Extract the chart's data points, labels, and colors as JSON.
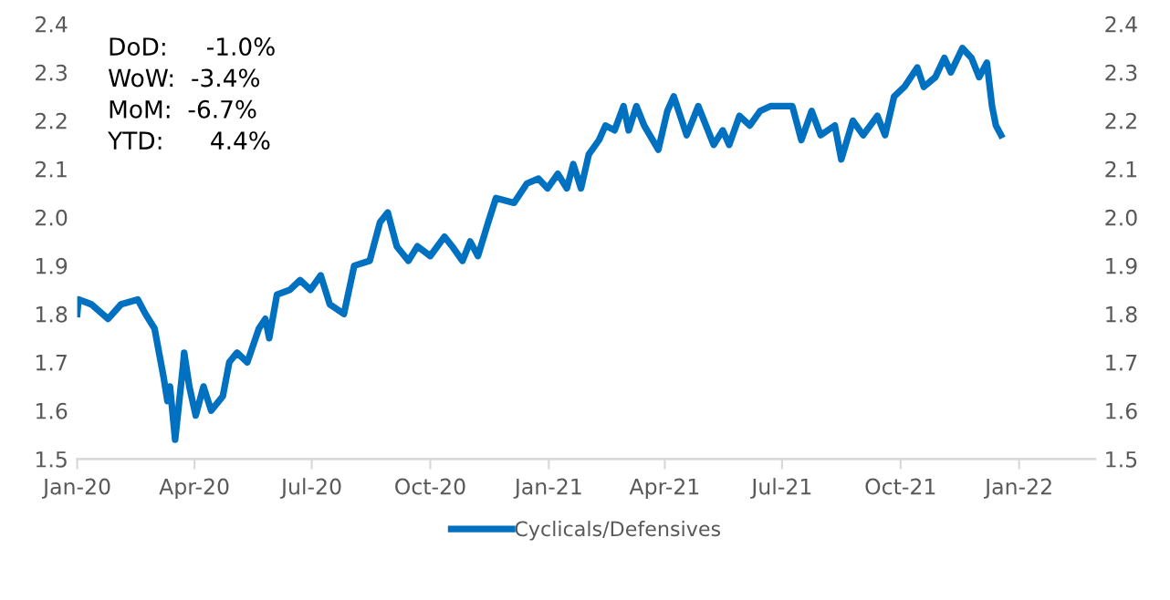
{
  "chart_data": {
    "type": "line",
    "x": [
      "2020-01-01",
      "2020-01-02",
      "2020-01-12",
      "2020-01-25",
      "2020-02-04",
      "2020-02-17",
      "2020-02-23",
      "2020-03-01",
      "2020-03-08",
      "2020-03-11",
      "2020-03-13",
      "2020-03-17",
      "2020-03-23",
      "2020-03-24",
      "2020-03-28",
      "2020-04-02",
      "2020-04-08",
      "2020-04-14",
      "2020-04-23",
      "2020-04-28",
      "2020-05-04",
      "2020-05-12",
      "2020-05-21",
      "2020-05-26",
      "2020-05-29",
      "2020-06-04",
      "2020-06-14",
      "2020-06-22",
      "2020-06-30",
      "2020-07-08",
      "2020-07-15",
      "2020-07-26",
      "2020-08-03",
      "2020-08-15",
      "2020-08-23",
      "2020-08-29",
      "2020-09-05",
      "2020-09-14",
      "2020-09-21",
      "2020-10-01",
      "2020-10-12",
      "2020-10-18",
      "2020-10-26",
      "2020-11-01",
      "2020-11-07",
      "2020-11-15",
      "2020-11-21",
      "2020-12-05",
      "2020-12-15",
      "2020-12-24",
      "2020-12-31",
      "2021-01-08",
      "2021-01-15",
      "2021-01-20",
      "2021-01-26",
      "2021-02-01",
      "2021-02-09",
      "2021-02-14",
      "2021-02-21",
      "2021-02-28",
      "2021-03-04",
      "2021-03-10",
      "2021-03-16",
      "2021-03-27",
      "2021-04-03",
      "2021-04-08",
      "2021-04-18",
      "2021-04-27",
      "2021-05-09",
      "2021-05-16",
      "2021-05-21",
      "2021-05-29",
      "2021-06-06",
      "2021-06-14",
      "2021-06-22",
      "2021-07-02",
      "2021-07-09",
      "2021-07-16",
      "2021-07-24",
      "2021-07-31",
      "2021-08-11",
      "2021-08-16",
      "2021-08-25",
      "2021-09-02",
      "2021-09-13",
      "2021-09-19",
      "2021-09-26",
      "2021-10-04",
      "2021-10-14",
      "2021-10-19",
      "2021-10-28",
      "2021-11-04",
      "2021-11-09",
      "2021-11-18",
      "2021-11-25",
      "2021-12-01",
      "2021-12-07",
      "2021-12-11",
      "2021-12-14",
      "2021-12-18"
    ],
    "series": [
      {
        "name": "Cyclicals/Defensives",
        "color": "#0070c0",
        "values": [
          1.8,
          1.83,
          1.82,
          1.79,
          1.82,
          1.83,
          1.8,
          1.77,
          1.67,
          1.62,
          1.65,
          1.54,
          1.69,
          1.72,
          1.65,
          1.59,
          1.65,
          1.6,
          1.63,
          1.7,
          1.72,
          1.7,
          1.77,
          1.79,
          1.75,
          1.84,
          1.85,
          1.87,
          1.85,
          1.88,
          1.82,
          1.8,
          1.9,
          1.91,
          1.99,
          2.01,
          1.94,
          1.91,
          1.94,
          1.92,
          1.96,
          1.94,
          1.91,
          1.95,
          1.92,
          1.99,
          2.04,
          2.03,
          2.07,
          2.08,
          2.06,
          2.09,
          2.06,
          2.11,
          2.06,
          2.13,
          2.16,
          2.19,
          2.18,
          2.23,
          2.18,
          2.23,
          2.19,
          2.14,
          2.22,
          2.25,
          2.17,
          2.23,
          2.15,
          2.18,
          2.15,
          2.21,
          2.19,
          2.22,
          2.23,
          2.23,
          2.23,
          2.16,
          2.22,
          2.17,
          2.19,
          2.12,
          2.2,
          2.17,
          2.21,
          2.17,
          2.25,
          2.27,
          2.31,
          2.27,
          2.29,
          2.33,
          2.3,
          2.35,
          2.33,
          2.29,
          2.32,
          2.23,
          2.19,
          2.17
        ]
      }
    ],
    "xlim": [
      "2020-01-01",
      "2022-03-01"
    ],
    "xticks": [
      {
        "value": "2020-01-01",
        "label": "Jan-20"
      },
      {
        "value": "2020-04-01",
        "label": "Apr-20"
      },
      {
        "value": "2020-07-01",
        "label": "Jul-20"
      },
      {
        "value": "2020-10-01",
        "label": "Oct-20"
      },
      {
        "value": "2021-01-01",
        "label": "Jan-21"
      },
      {
        "value": "2021-04-01",
        "label": "Apr-21"
      },
      {
        "value": "2021-07-01",
        "label": "Jul-21"
      },
      {
        "value": "2021-10-01",
        "label": "Oct-21"
      },
      {
        "value": "2022-01-01",
        "label": "Jan-22"
      }
    ],
    "ylim": [
      1.5,
      2.4
    ],
    "yticks": [
      1.5,
      1.6,
      1.7,
      1.8,
      1.9,
      {
        "value": 2,
        "label": "2.0"
      },
      2.1,
      2.2,
      2.3,
      2.4
    ],
    "y2lim": [
      1.5,
      2.4
    ],
    "y2ticks": [
      1.5,
      1.6,
      1.7,
      1.8,
      1.9,
      {
        "value": 2,
        "label": "2.0"
      },
      2.1,
      2.2,
      2.3,
      2.4
    ],
    "annotations": [
      "DoD:     -1.0%",
      "WoW:  -3.4%",
      "MoM:  -6.7%",
      "YTD:      4.4%"
    ],
    "legend": "bottom",
    "grid": false,
    "marker": "none",
    "line_style": "solid"
  }
}
